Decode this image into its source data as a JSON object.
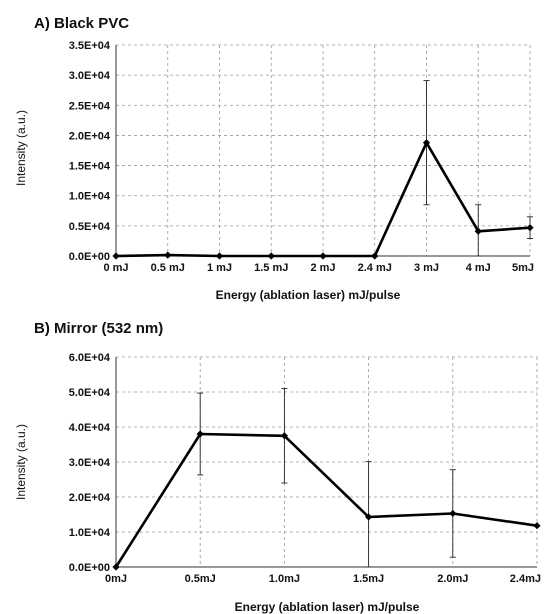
{
  "chart_data": [
    {
      "type": "line",
      "title": "A) Black PVC",
      "xlabel": "Energy (ablation laser) mJ/pulse",
      "ylabel": "Intensity (a.u.)",
      "categories": [
        "0 mJ",
        "0.5 mJ",
        "1 mJ",
        "1.5 mJ",
        "2 mJ",
        "2.4 mJ",
        "3 mJ",
        "4 mJ",
        "5mJ"
      ],
      "ylim": [
        0,
        35000
      ],
      "y_ticks": [
        0,
        5000,
        10000,
        15000,
        20000,
        25000,
        30000,
        35000
      ],
      "y_tick_labels": [
        "0.0E+00",
        "0.5E+04",
        "1.0E+04",
        "1.5E+04",
        "2.0E+04",
        "2.5E+04",
        "3.0E+04",
        "3.5E+04"
      ],
      "series": [
        {
          "values": [
            0,
            150,
            0,
            0,
            0,
            0,
            18800,
            4100,
            4700
          ],
          "error": [
            0,
            0,
            0,
            0,
            0,
            0,
            10300,
            4400,
            1800
          ]
        }
      ],
      "grid": "dashed",
      "legend": "none"
    },
    {
      "type": "line",
      "title": "B) Mirror (532 nm)",
      "xlabel": "Energy (ablation laser) mJ/pulse",
      "ylabel": "Intensity (a.u.)",
      "categories": [
        "0mJ",
        "0.5mJ",
        "1.0mJ",
        "1.5mJ",
        "2.0mJ",
        "2.4mJ"
      ],
      "ylim": [
        0,
        60000
      ],
      "y_ticks": [
        0,
        10000,
        20000,
        30000,
        40000,
        50000,
        60000
      ],
      "y_tick_labels": [
        "0.0E+00",
        "1.0E+04",
        "2.0E+04",
        "3.0E+04",
        "4.0E+04",
        "5.0E+04",
        "6.0E+04"
      ],
      "series": [
        {
          "values": [
            0,
            38000,
            37500,
            14300,
            15300,
            11800
          ],
          "error": [
            0,
            11700,
            13500,
            15800,
            12500,
            0
          ]
        }
      ],
      "grid": "dashed",
      "legend": "none"
    }
  ]
}
